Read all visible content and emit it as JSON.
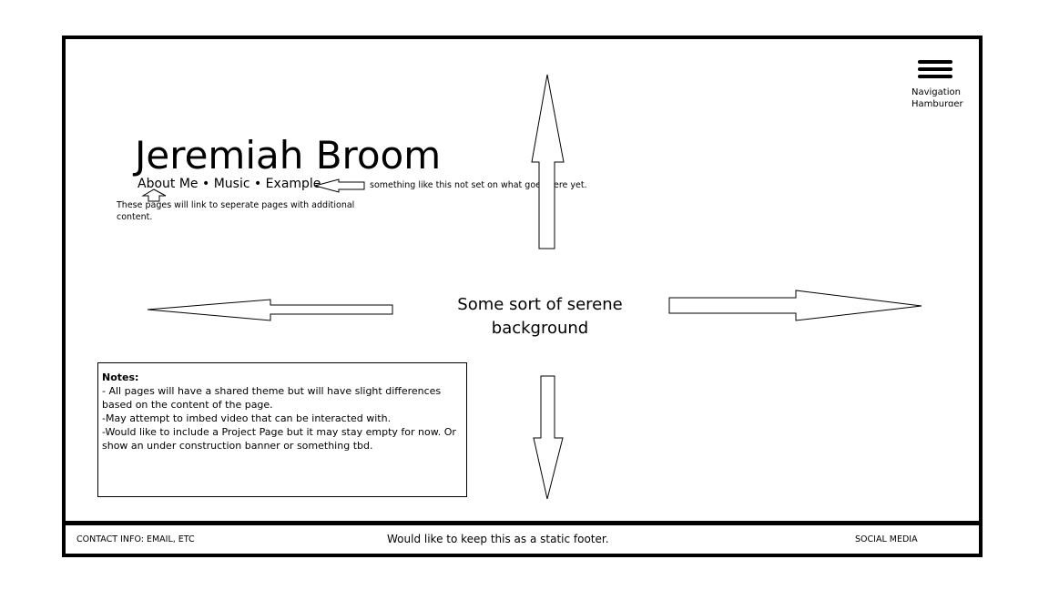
{
  "header": {
    "name": "Jeremiah Broom",
    "nav_links": "About Me • Music • Example",
    "nav_annotation": "something like this not set on what goes here yet.",
    "links_note": "These pages will link to seperate pages with additional content."
  },
  "hamburger": {
    "caption": "Navigation Hamburger"
  },
  "center": {
    "text": "Some sort of serene background"
  },
  "notes": {
    "heading": "Notes:",
    "lines": [
      "- All pages will have a shared theme but will have slight differences based on the content of the page.",
      "-May attempt to imbed video that can be interacted with.",
      "-Would like to include a Project Page but it may stay empty for now. Or show an under construction banner or something tbd."
    ]
  },
  "footer": {
    "contact": "CONTACT INFO: EMAIL, ETC",
    "static_note": "Would like to keep this as a static footer.",
    "social": "SOCIAL MEDIA"
  }
}
